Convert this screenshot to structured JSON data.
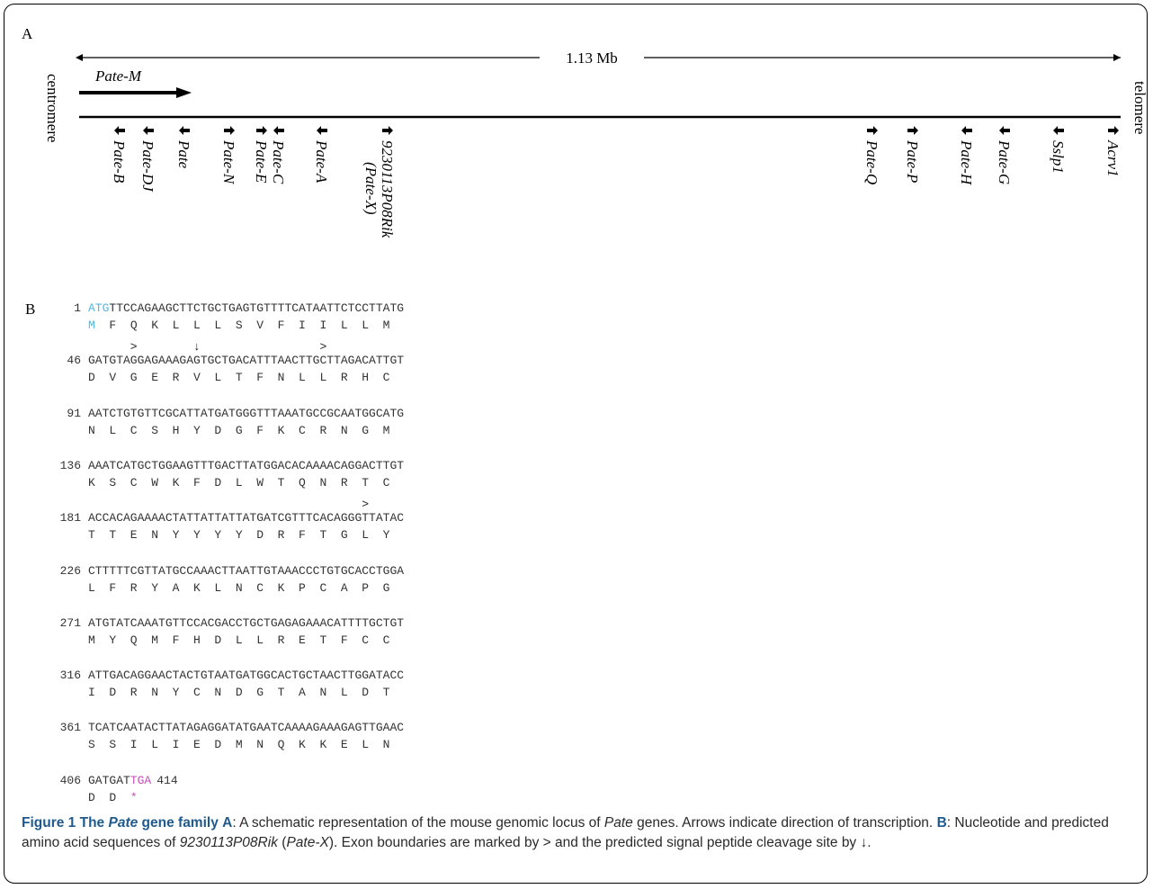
{
  "panel_a": {
    "label": "A",
    "scale_label": "1.13 Mb",
    "left_end": "centromere",
    "right_end": "telomere",
    "highlight_gene": "Pate-M",
    "genes": [
      {
        "name": "Pate-B",
        "direction": "left"
      },
      {
        "name": "Pate-DJ",
        "direction": "left"
      },
      {
        "name": "Pate",
        "direction": "left"
      },
      {
        "name": "Pate-N",
        "direction": "right"
      },
      {
        "name": "Pate-E",
        "direction": "right"
      },
      {
        "name": "Pate-C",
        "direction": "left"
      },
      {
        "name": "Pate-A",
        "direction": "left"
      },
      {
        "name": "9230113P08Rik",
        "alt_name": "(Pate-X)",
        "direction": "right"
      },
      {
        "name": "Pate-Q",
        "direction": "right"
      },
      {
        "name": "Pate-P",
        "direction": "right"
      },
      {
        "name": "Pate-H",
        "direction": "left"
      },
      {
        "name": "Pate-G",
        "direction": "left"
      },
      {
        "name": "Sslp1",
        "direction": "left"
      },
      {
        "name": "Acrv1",
        "direction": "right"
      }
    ]
  },
  "panel_b": {
    "label": "B",
    "rows": [
      {
        "pos": "1",
        "start": "ATG",
        "nt": "TTCCAGAAGCTTCTGCTGAGTGTTTTCATAATTCTCCTTATG",
        "aa_start": "M",
        "aa": "  F  Q  K  L  L  L  S  V  F  I  I  L  L  M",
        "marks": ""
      },
      {
        "pos": "46",
        "nt": "GATGTAGGAGAAAGAGTGCTGACATTTAACTTGCTTAGACATTGT",
        "aa": "D  V  G  E  R  V  L  T  F  N  L  L  R  H  C",
        "marks": "      >        ↓                 >"
      },
      {
        "pos": "91",
        "nt": "AATCTGTGTTCGCATTATGATGGGTTTAAATGCCGCAATGGCATG",
        "aa": "N  L  C  S  H  Y  D  G  F  K  C  R  N  G  M",
        "marks": ""
      },
      {
        "pos": "136",
        "nt": "AAATCATGCTGGAAGTTTGACTTATGGACACAAAACAGGACTTGT",
        "aa": "K  S  C  W  K  F  D  L  W  T  Q  N  R  T  C",
        "marks": ""
      },
      {
        "pos": "181",
        "nt": "ACCACAGAAAACTATTATTATTATGATCGTTTCACAGGGTTATAC",
        "aa": "T  T  E  N  Y  Y  Y  Y  D  R  F  T  G  L  Y",
        "marks": "                                       >"
      },
      {
        "pos": "226",
        "nt": "CTTTTTCGTTATGCCAAACTTAATTGTAAACCCTGTGCACCTGGA",
        "aa": "L  F  R  Y  A  K  L  N  C  K  P  C  A  P  G",
        "marks": ""
      },
      {
        "pos": "271",
        "nt": "ATGTATCAAATGTTCCACGACCTGCTGAGAGAAACATTTTGCTGT",
        "aa": "M  Y  Q  M  F  H  D  L  L  R  E  T  F  C  C",
        "marks": ""
      },
      {
        "pos": "316",
        "nt": "ATTGACAGGAACTACTGTAATGATGGCACTGCTAACTTGGATACC",
        "aa": "I  D  R  N  Y  C  N  D  G  T  A  N  L  D  T",
        "marks": ""
      },
      {
        "pos": "361",
        "nt": "TCATCAATACTTATAGAGGATATGAATCAAAAGAAAGAGTTGAAC",
        "aa": "S  S  I  L  I  E  D  M  N  Q  K  K  E  L  N",
        "marks": ""
      }
    ],
    "last_row": {
      "pos": "406",
      "nt": "GATGAT",
      "stop": "TGA",
      "end": "414",
      "aa": "D  D  ",
      "aa_stop": "*"
    }
  },
  "caption": {
    "fig": "Figure 1",
    "title_pre": "The",
    "title_gene": "Pate",
    "title_post": "gene family",
    "a_label": "A",
    "a_text_1": ": A schematic representation of the mouse genomic locus of",
    "a_gene": "Pate",
    "a_text_2": "genes. Arrows indicate direction of transcription.",
    "b_label": "B",
    "b_text_1": ": Nucleotide and predicted amino acid sequences of",
    "b_gene": "9230113P08Rik",
    "b_alt_open": "(",
    "b_alt": "Pate-X",
    "b_alt_close": ").",
    "b_text_2": "Exon boundaries are marked by > and the predicted signal peptide cleavage site by ↓."
  }
}
